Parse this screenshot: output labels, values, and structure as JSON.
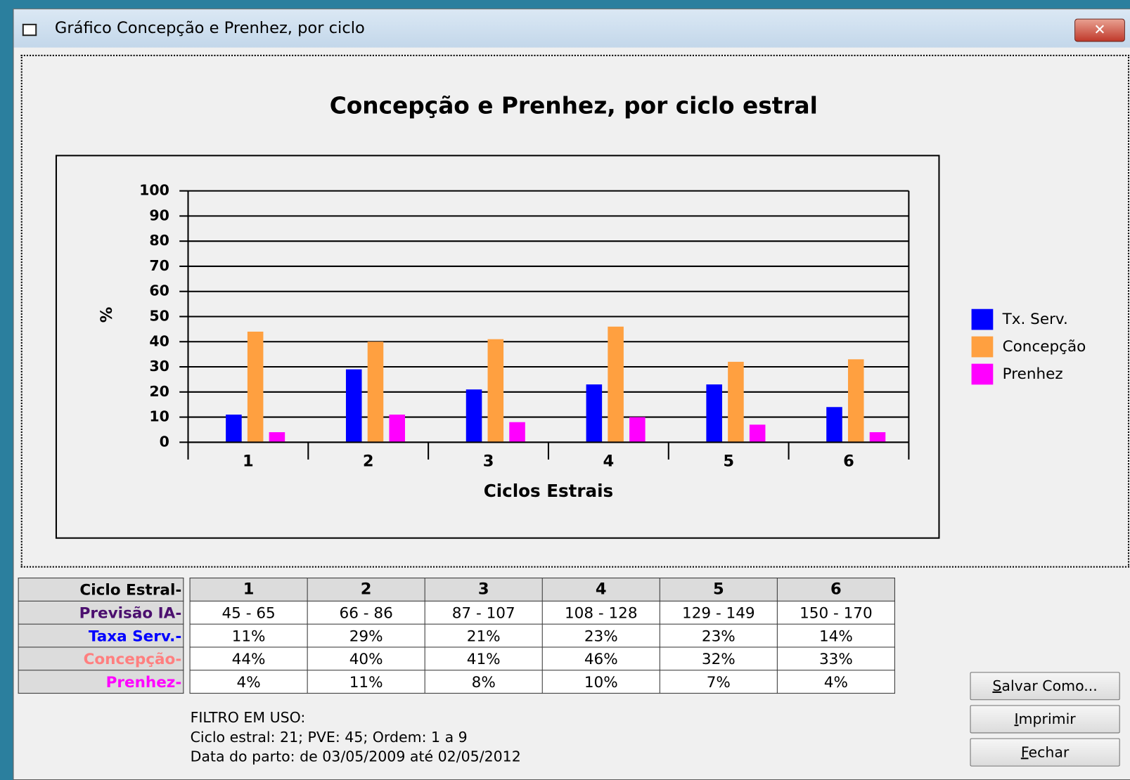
{
  "window": {
    "title": "Gráfico Concepção e Prenhez, por ciclo"
  },
  "chart_data": {
    "type": "bar",
    "title": "Concepção e Prenhez, por ciclo estral",
    "ylabel": "%",
    "xlabel": "Ciclos Estrais",
    "categories": [
      "1",
      "2",
      "3",
      "4",
      "5",
      "6"
    ],
    "series": [
      {
        "name": "Tx. Serv.",
        "color": "#0000ff",
        "values": [
          11,
          29,
          21,
          23,
          23,
          14
        ]
      },
      {
        "name": "Concepção",
        "color": "#ffa040",
        "values": [
          44,
          40,
          41,
          46,
          32,
          33
        ]
      },
      {
        "name": "Prenhez",
        "color": "#ff00ff",
        "values": [
          4,
          11,
          8,
          10,
          7,
          4
        ]
      }
    ],
    "ylim": [
      0,
      100
    ],
    "yticks": [
      0,
      10,
      20,
      30,
      40,
      50,
      60,
      70,
      80,
      90,
      100
    ],
    "grid": true,
    "legend": "right"
  },
  "table": {
    "header": [
      "Ciclo Estral-",
      "1",
      "2",
      "3",
      "4",
      "5",
      "6"
    ],
    "rows": [
      [
        "Previsão IA-",
        "45 - 65",
        "66 - 86",
        "87 - 107",
        "108 - 128",
        "129 - 149",
        "150 - 170"
      ],
      [
        "Taxa Serv.-",
        "11%",
        "29%",
        "21%",
        "23%",
        "23%",
        "14%"
      ],
      [
        "Concepção-",
        "44%",
        "40%",
        "41%",
        "46%",
        "32%",
        "33%"
      ],
      [
        "Prenhez-",
        "4%",
        "11%",
        "8%",
        "10%",
        "7%",
        "4%"
      ]
    ]
  },
  "filter": {
    "lines": [
      "FILTRO EM USO:",
      "Ciclo estral: 21; PVE: 45; Ordem: 1 a 9",
      "Data do parto: de 03/05/2009 até 02/05/2012"
    ]
  },
  "buttons": [
    "Salvar Como...",
    "Imprimir",
    "Fechar"
  ]
}
